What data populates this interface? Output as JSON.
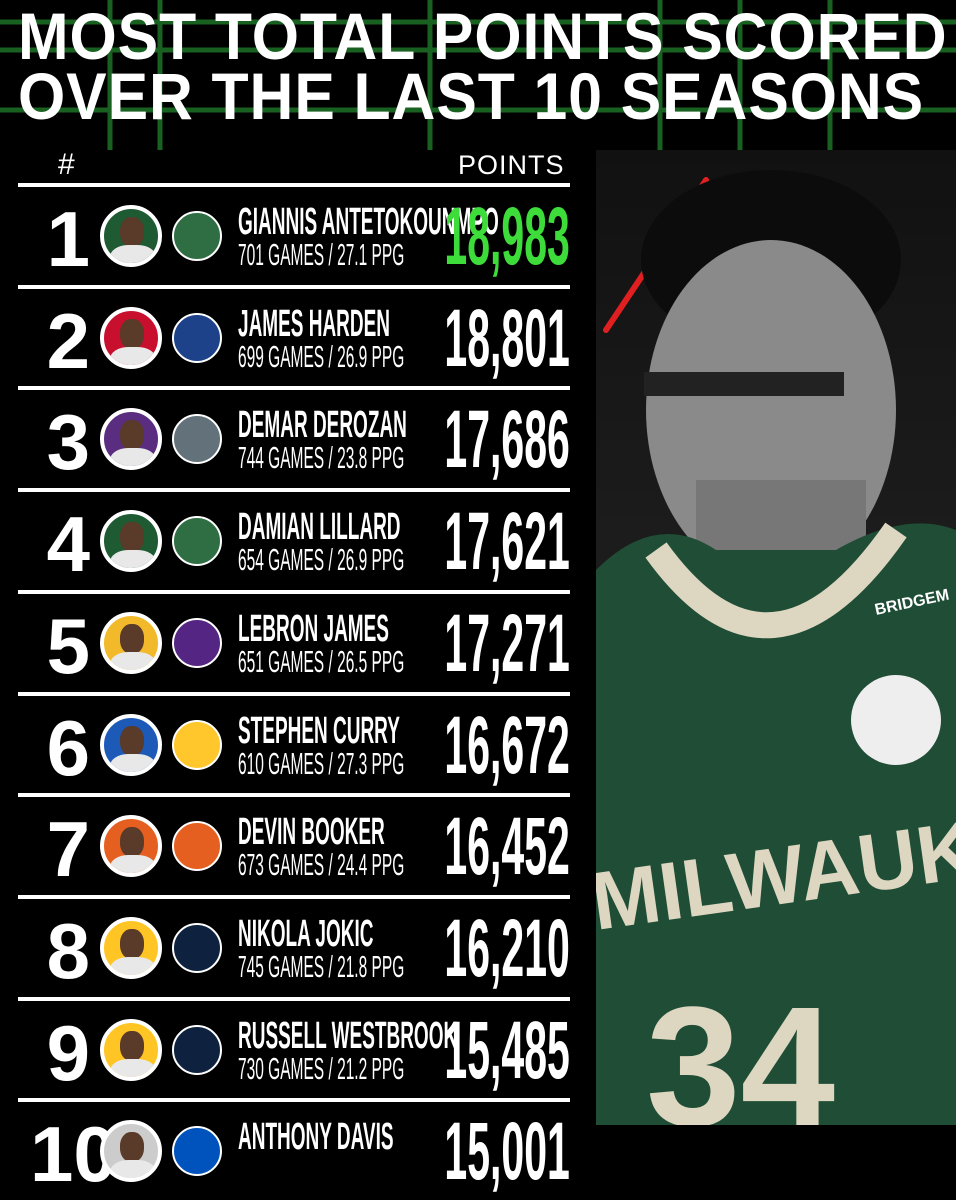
{
  "title": {
    "line1": "MOST TOTAL POINTS SCORED",
    "line2": "OVER THE LAST 10 SEASONS"
  },
  "header": {
    "rank": "#",
    "points": "POINTS"
  },
  "colors": {
    "background": "#000000",
    "highlight": "#3ddc3a",
    "accent_line": "#1f7a2a"
  },
  "rows": [
    {
      "rank": "1",
      "name": "GIANNIS ANTETOKOUNMPO",
      "stats": "701 GAMES / 27.1 PPG",
      "points": "18,983",
      "team": "bucks-logo",
      "avatar_bg": "#1e5b33",
      "logo_color": "#2f6e42",
      "highlight": true
    },
    {
      "rank": "2",
      "name": "JAMES HARDEN",
      "stats": "699 GAMES / 26.9 PPG",
      "points": "18,801",
      "team": "clippers-logo",
      "avatar_bg": "#c8102e",
      "logo_color": "#1d428a"
    },
    {
      "rank": "3",
      "name": "DEMAR DEROZAN",
      "stats": "744 GAMES / 23.8 PPG",
      "points": "17,686",
      "team": "kings-logo",
      "avatar_bg": "#5a2d81",
      "logo_color": "#63727a"
    },
    {
      "rank": "4",
      "name": "DAMIAN LILLARD",
      "stats": "654 GAMES / 26.9 PPG",
      "points": "17,621",
      "team": "bucks-logo",
      "avatar_bg": "#1e5b33",
      "logo_color": "#2f6e42"
    },
    {
      "rank": "5",
      "name": "LEBRON JAMES",
      "stats": "651 GAMES / 26.5 PPG",
      "points": "17,271",
      "team": "lakers-logo",
      "avatar_bg": "#f2b92a",
      "logo_color": "#552583"
    },
    {
      "rank": "6",
      "name": "STEPHEN CURRY",
      "stats": "610 GAMES / 27.3 PPG",
      "points": "16,672",
      "team": "warriors-logo",
      "avatar_bg": "#1d5ab8",
      "logo_color": "#ffc72c"
    },
    {
      "rank": "7",
      "name": "DEVIN BOOKER",
      "stats": "673 GAMES / 24.4 PPG",
      "points": "16,452",
      "team": "suns-logo",
      "avatar_bg": "#e56020",
      "logo_color": "#e56020"
    },
    {
      "rank": "8",
      "name": "NIKOLA JOKIC",
      "stats": "745 GAMES / 21.8 PPG",
      "points": "16,210",
      "team": "nuggets-logo",
      "avatar_bg": "#fec524",
      "logo_color": "#0e2240"
    },
    {
      "rank": "9",
      "name": "RUSSELL WESTBROOK",
      "stats": "730 GAMES / 21.2 PPG",
      "points": "15,485",
      "team": "nuggets-logo",
      "avatar_bg": "#fec524",
      "logo_color": "#0e2240"
    },
    {
      "rank": "10",
      "name": "ANTHONY DAVIS",
      "stats": "",
      "points": "15,001",
      "team": "mavericks-logo",
      "avatar_bg": "#cccccc",
      "logo_color": "#0053bc"
    }
  ],
  "photo": {
    "jersey_text": "MILWAUKEE",
    "jersey_number": "34",
    "patch": "BRIDGEM"
  }
}
